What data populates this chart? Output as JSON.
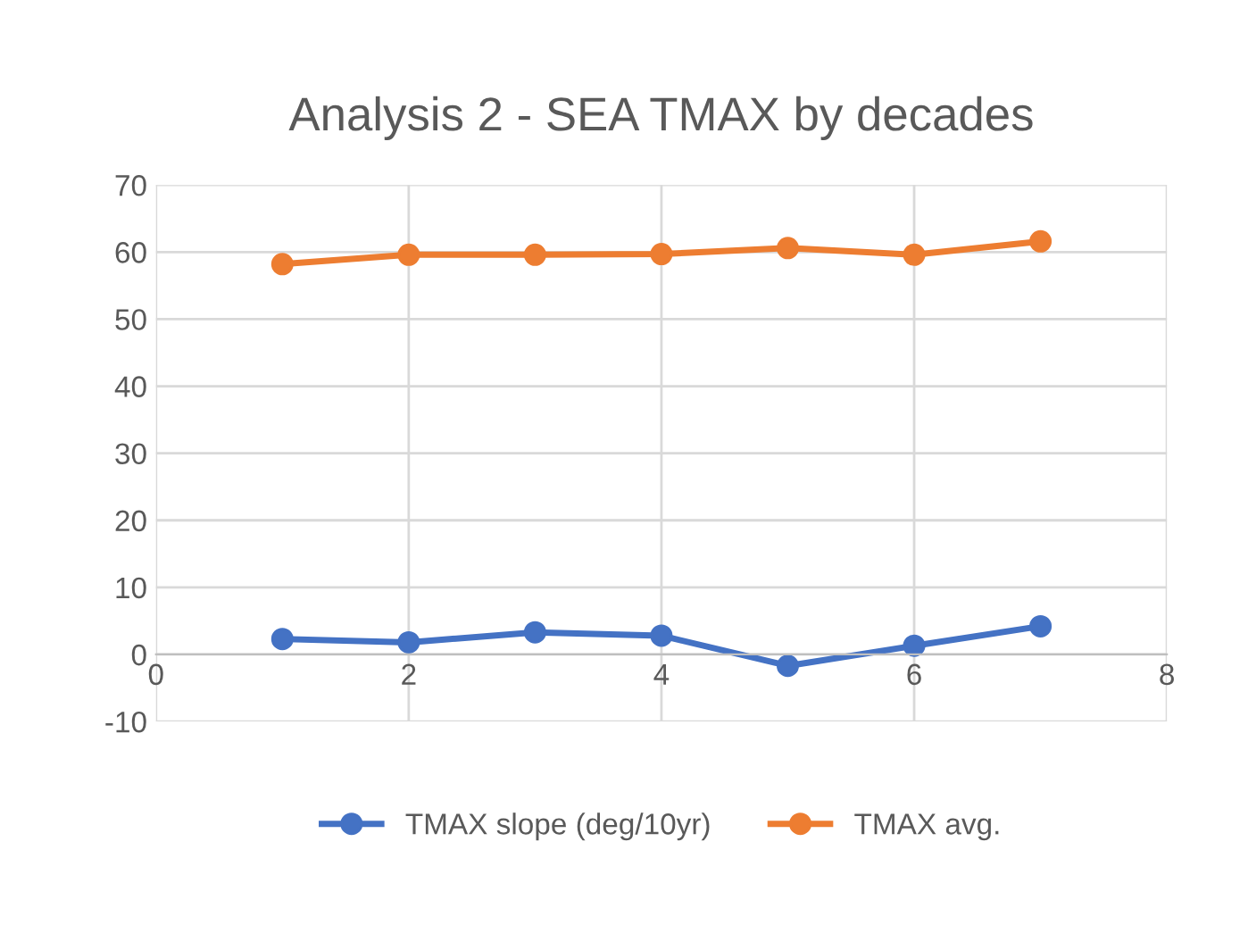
{
  "chart_data": {
    "type": "line",
    "title": "Analysis 2 - SEA TMAX by decades",
    "series": [
      {
        "name": "TMAX slope (deg/10yr)",
        "color": "#4472c4",
        "x": [
          1,
          2,
          3,
          4,
          5,
          6,
          7
        ],
        "values": [
          2.3,
          1.8,
          3.3,
          2.8,
          -1.7,
          1.3,
          4.2
        ]
      },
      {
        "name": "TMAX avg.",
        "color": "#ed7d31",
        "x": [
          1,
          2,
          3,
          4,
          5,
          6,
          7
        ],
        "values": [
          58.2,
          59.6,
          59.6,
          59.7,
          60.6,
          59.6,
          61.6
        ]
      }
    ],
    "xlim": [
      0,
      8
    ],
    "xticks": [
      0,
      2,
      4,
      6,
      8
    ],
    "ylim": [
      -10,
      70
    ],
    "yticks": [
      -10,
      0,
      10,
      20,
      30,
      40,
      50,
      60,
      70
    ],
    "grid": true,
    "legend": "bottom",
    "marker": "circle",
    "line_style": "solid"
  }
}
